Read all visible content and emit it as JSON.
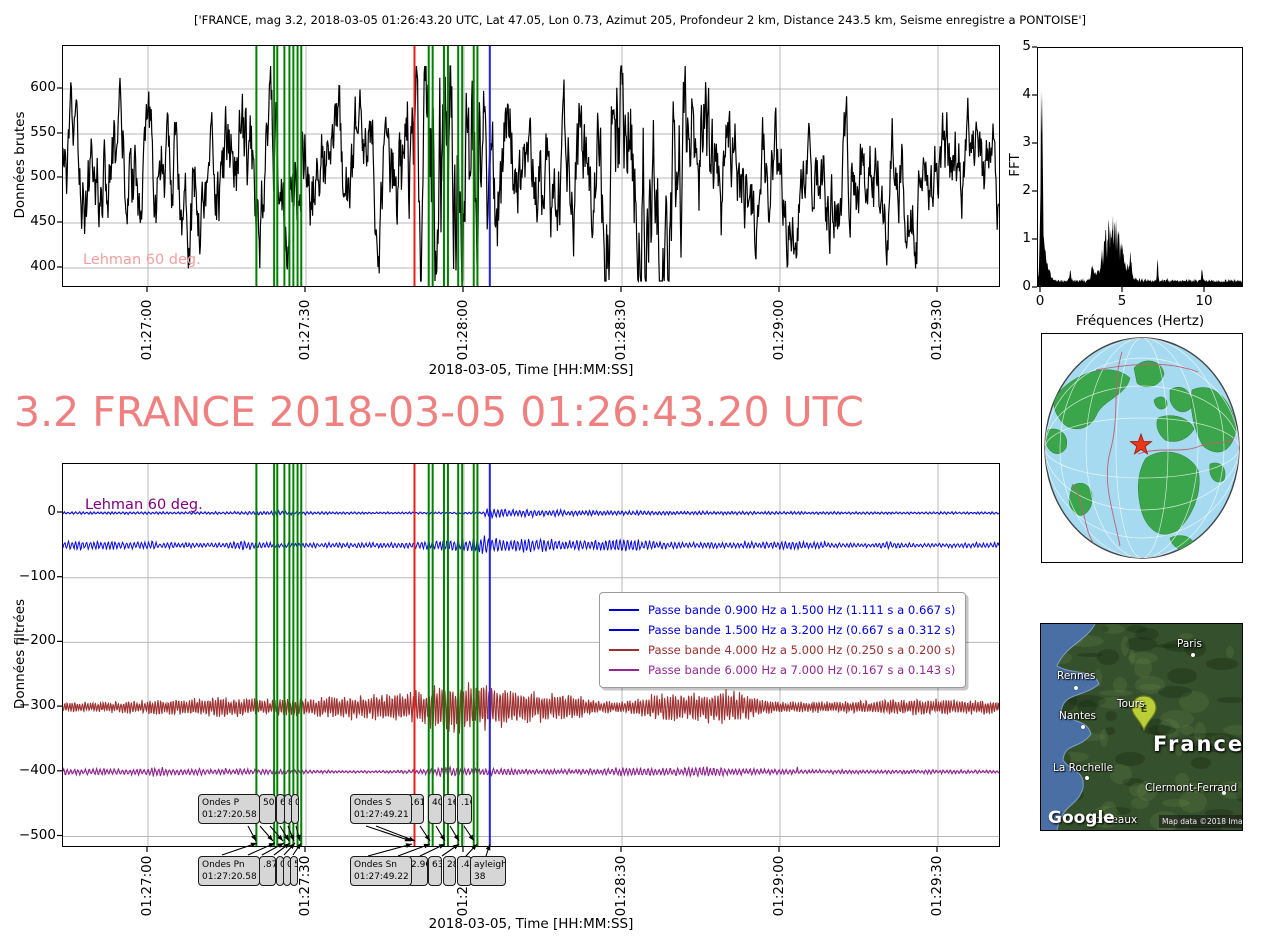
{
  "figure_title": "['FRANCE, mag 3.2, 2018-03-05 01:26:43.20 UTC, Lat 47.05, Lon 0.73, Azimut 205, Profondeur 2 km, Distance 243.5 km, Seisme enregistre a PONTOISE']",
  "main_title": "3.2 FRANCE 2018-03-05 01:26:43.20 UTC",
  "colors": {
    "accent_pink": "#f08080",
    "watermark_top": "#f59e9e",
    "watermark_bottom": "#800080",
    "trace_black": "#000000",
    "trace_blue": "#0b0bdd",
    "trace_darkred": "#9e3232",
    "trace_purple": "#8f1a8f",
    "vline_green": "#008000",
    "vline_red": "#e8201c",
    "vline_blue": "#2222e0",
    "grid_gray": "#b8b8b8",
    "globe_ocean": "#a5daf0",
    "globe_land": "#3aa54a",
    "star_red": "#e8381c",
    "map_ocean": "#4a6fa5",
    "map_land": "#35502c"
  },
  "top_plot": {
    "ylabel": "Données brutes",
    "ytick_labels": [
      "600",
      "550",
      "500",
      "450",
      "400"
    ],
    "xtick_labels": [
      "01:27:00",
      "01:27:30",
      "01:28:00",
      "01:28:30",
      "01:29:00",
      "01:29:30"
    ],
    "xlabel": "2018-03-05, Time [HH:MM:SS]",
    "watermark": "Lehman 60 deg."
  },
  "fft_plot": {
    "ylabel": "FFT",
    "xlabel": "Fréquences (Hertz)",
    "ytick_labels": [
      "5",
      "4",
      "3",
      "2",
      "1",
      "0"
    ],
    "xtick_labels": [
      "0",
      "5",
      "10"
    ]
  },
  "bottom_plot": {
    "ylabel": "Données filtrées",
    "ytick_labels": [
      "0",
      "−100",
      "−200",
      "−300",
      "−400",
      "−500"
    ],
    "xtick_labels": [
      "01:27:00",
      "01:27:30",
      "01:28:00",
      "01:28:30",
      "01:29:00",
      "01:29:30"
    ],
    "xlabel": "2018-03-05, Time [HH:MM:SS]",
    "watermark": "Lehman 60 deg.",
    "legend": [
      {
        "label": "Passe bande 0.900 Hz a 1.500 Hz (1.111 s a 0.667 s)",
        "color": "#0000e0"
      },
      {
        "label": "Passe bande 1.500 Hz a 3.200 Hz (0.667 s a 0.312 s)",
        "color": "#0000e0"
      },
      {
        "label": "Passe bande 4.000 Hz a 5.000 Hz (0.250 s a 0.200 s)",
        "color": "#9c2f2f"
      },
      {
        "label": "Passe bande 6.000 Hz a 7.000 Hz (0.167 s a 0.143 s)",
        "color": "#952795"
      }
    ]
  },
  "phase_annotations": {
    "p": {
      "line1": "Ondes P",
      "line2": "01:27:20.58",
      "fragments": [
        "50",
        "6",
        "8",
        "0"
      ]
    },
    "s": {
      "line1": "Ondes S",
      "line2": "01:27:49.21",
      "fragments": [
        ".61",
        "40",
        "16",
        ".16"
      ]
    },
    "pn": {
      "line1": "Ondes Pn",
      "line2": "01:27:20.58",
      "fragments": [
        ".87",
        "0",
        "0",
        "5"
      ]
    },
    "sn": {
      "line1": "Ondes Sn",
      "line2": "01:27:49.22",
      "fragments": [
        "2.96",
        "63",
        "28",
        ".47"
      ],
      "rayleigh_line1": "ayleigh",
      "rayleigh_line2": "38"
    }
  },
  "map": {
    "big_label": "France",
    "pin_label": "E",
    "logo": "Google",
    "attribution": "Map data ©2018  Imagery ©2018 TerraMetrics",
    "cities": [
      {
        "name": "Paris"
      },
      {
        "name": "Rennes"
      },
      {
        "name": "Nantes"
      },
      {
        "name": "Tours"
      },
      {
        "name": "La Rochelle"
      },
      {
        "name": "Clermont-Ferrand"
      },
      {
        "name": "Bordeaux"
      }
    ]
  },
  "chart_data": [
    {
      "type": "line",
      "id": "raw-seismogram",
      "title": "",
      "ylabel": "Données brutes",
      "xlabel": "2018-03-05, Time [HH:MM:SS]",
      "x_ticks": [
        "01:27:00",
        "01:27:30",
        "01:28:00",
        "01:28:30",
        "01:29:00",
        "01:29:30"
      ],
      "y_ticks": [
        400,
        450,
        500,
        550,
        600
      ],
      "ylim": [
        385,
        645
      ],
      "grid": true,
      "series_color": "black",
      "baseline_value": 500,
      "typical_noise_amplitude": 35,
      "bursts": [
        {
          "time": "01:27:57",
          "peak_deviation": 105
        },
        {
          "time": "01:28:32",
          "peak_deviation": 95
        }
      ],
      "watermark": "Lehman 60 deg.",
      "vlines_note": "t_s = seconds after 01:27:00",
      "vlines": [
        {
          "color": "green",
          "t_s": 20.58
        },
        {
          "color": "green",
          "t_s": 23.95
        },
        {
          "color": "green",
          "t_s": 24.55
        },
        {
          "color": "green",
          "t_s": 25.9
        },
        {
          "color": "green",
          "t_s": 26.85
        },
        {
          "color": "green",
          "t_s": 27.6
        },
        {
          "color": "green",
          "t_s": 28.4
        },
        {
          "color": "green",
          "t_s": 29.1
        },
        {
          "color": "red",
          "t_s": 50.6
        },
        {
          "color": "green",
          "t_s": 53.3
        },
        {
          "color": "green",
          "t_s": 54.05
        },
        {
          "color": "green",
          "t_s": 56.2
        },
        {
          "color": "green",
          "t_s": 56.95
        },
        {
          "color": "green",
          "t_s": 58.9
        },
        {
          "color": "green",
          "t_s": 59.65
        },
        {
          "color": "green",
          "t_s": 61.85
        },
        {
          "color": "green",
          "t_s": 62.55
        },
        {
          "color": "blue",
          "t_s": 64.9
        }
      ]
    },
    {
      "type": "area",
      "id": "fft-spectrum",
      "xlabel": "Fréquences (Hertz)",
      "ylabel": "FFT",
      "xlim": [
        0,
        12.5
      ],
      "ylim": [
        0,
        5
      ],
      "x_ticks": [
        0,
        5,
        10
      ],
      "y_ticks": [
        0,
        1,
        2,
        3,
        4,
        5
      ],
      "fill_color": "black",
      "baseline_level": 0.1,
      "peaks": [
        {
          "freq": 0.2,
          "amplitude": 3.55
        },
        {
          "freq": 4.5,
          "amplitude": 1.2
        },
        {
          "freq": 7.2,
          "amplitude": 0.6
        },
        {
          "freq": 10.0,
          "amplitude": 0.35
        }
      ]
    },
    {
      "type": "line",
      "id": "filtered-seismograms",
      "ylabel": "Données filtrées",
      "xlabel": "2018-03-05, Time [HH:MM:SS]",
      "x_ticks": [
        "01:27:00",
        "01:27:30",
        "01:28:00",
        "01:28:30",
        "01:29:00",
        "01:29:30"
      ],
      "y_ticks": [
        0,
        -100,
        -200,
        -300,
        -400,
        -500
      ],
      "ylim": [
        -520,
        70
      ],
      "grid": true,
      "legend_position": "center right",
      "series": [
        {
          "name": "Passe bande 0.900 Hz a 1.500 Hz (1.111 s a 0.667 s)",
          "offset": 0,
          "color": "blue",
          "peak_amplitude": 9
        },
        {
          "name": "Passe bande 1.500 Hz a 3.200 Hz (0.667 s a 0.312 s)",
          "offset": -50,
          "color": "blue",
          "peak_amplitude": 14
        },
        {
          "name": "Passe bande 4.000 Hz a 5.000 Hz (0.250 s a 0.200 s)",
          "offset": -300,
          "color": "darkred",
          "peak_amplitude": 32
        },
        {
          "name": "Passe bande 6.000 Hz a 7.000 Hz (0.167 s a 0.143 s)",
          "offset": -400,
          "color": "purple",
          "peak_amplitude": 10
        }
      ],
      "phase_arrivals": [
        {
          "phase": "Ondes P",
          "time": "01:27:20.58"
        },
        {
          "phase": "Ondes Pn",
          "time": "01:27:20.58"
        },
        {
          "phase": "Ondes S",
          "time": "01:27:49.21"
        },
        {
          "phase": "Ondes Sn",
          "time": "01:27:49.22"
        },
        {
          "phase": "Rayleigh",
          "time": "01:28:05"
        }
      ],
      "watermark": "Lehman 60 deg.",
      "vlines": "same as raw-seismogram"
    }
  ]
}
